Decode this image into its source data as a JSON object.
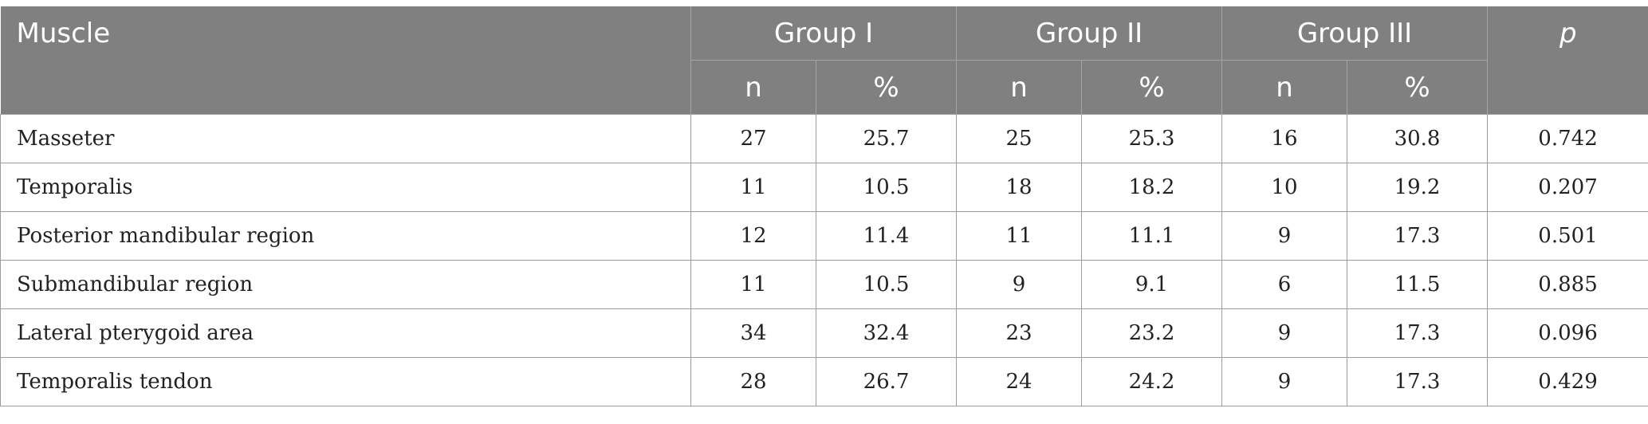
{
  "header": {
    "muscle": "Muscle",
    "groups": [
      "Group I",
      "Group II",
      "Group III"
    ],
    "p": "p",
    "sub": [
      "n",
      "%",
      "n",
      "%",
      "n",
      "%"
    ]
  },
  "rows": [
    {
      "muscle": "Masseter",
      "g1_n": "27",
      "g1_pct": "25.7",
      "g2_n": "25",
      "g2_pct": "25.3",
      "g3_n": "16",
      "g3_pct": "30.8",
      "p": "0.742"
    },
    {
      "muscle": "Temporalis",
      "g1_n": "11",
      "g1_pct": "10.5",
      "g2_n": "18",
      "g2_pct": "18.2",
      "g3_n": "10",
      "g3_pct": "19.2",
      "p": "0.207"
    },
    {
      "muscle": "Posterior mandibular region",
      "g1_n": "12",
      "g1_pct": "11.4",
      "g2_n": "11",
      "g2_pct": "11.1",
      "g3_n": "9",
      "g3_pct": "17.3",
      "p": "0.501"
    },
    {
      "muscle": "Submandibular region",
      "g1_n": "11",
      "g1_pct": "10.5",
      "g2_n": "9",
      "g2_pct": "9.1",
      "g3_n": "6",
      "g3_pct": "11.5",
      "p": "0.885"
    },
    {
      "muscle": "Lateral pterygoid area",
      "g1_n": "34",
      "g1_pct": "32.4",
      "g2_n": "23",
      "g2_pct": "23.2",
      "g3_n": "9",
      "g3_pct": "17.3",
      "p": "0.096"
    },
    {
      "muscle": "Temporalis tendon",
      "g1_n": "28",
      "g1_pct": "26.7",
      "g2_n": "24",
      "g2_pct": "24.2",
      "g3_n": "9",
      "g3_pct": "17.3",
      "p": "0.429"
    }
  ]
}
